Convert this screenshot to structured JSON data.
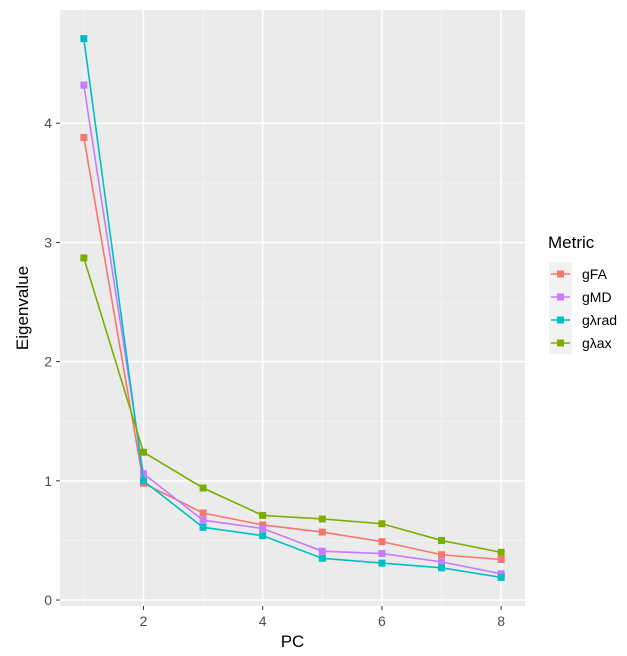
{
  "chart_data": {
    "type": "line",
    "xlabel": "PC",
    "ylabel": "Eigenvalue",
    "xlim": [
      0.6,
      8.4
    ],
    "ylim": [
      -0.05,
      4.95
    ],
    "x_ticks": [
      2,
      4,
      6,
      8
    ],
    "y_ticks": [
      0,
      1,
      2,
      3,
      4
    ],
    "x_tick_labels": [
      "2",
      "4",
      "6",
      "8"
    ],
    "y_tick_labels": [
      "0",
      "1",
      "2",
      "3",
      "4"
    ],
    "grid": true,
    "legend": {
      "title": "Metric",
      "placement": "right"
    },
    "x": [
      1,
      2,
      3,
      4,
      5,
      6,
      7,
      8
    ],
    "series": [
      {
        "name": "gFA",
        "color": "#F8766D",
        "values": [
          3.88,
          0.98,
          0.73,
          0.63,
          0.57,
          0.49,
          0.38,
          0.34
        ]
      },
      {
        "name": "gMD",
        "color": "#C77CFF",
        "values": [
          4.32,
          1.06,
          0.67,
          0.6,
          0.41,
          0.39,
          0.32,
          0.22
        ]
      },
      {
        "name": "gλrad",
        "color": "#00BFC4",
        "values": [
          4.71,
          1.0,
          0.61,
          0.54,
          0.35,
          0.31,
          0.27,
          0.19
        ]
      },
      {
        "name": "gλax",
        "color": "#7CAE00",
        "values": [
          2.87,
          1.24,
          0.94,
          0.71,
          0.68,
          0.64,
          0.5,
          0.4
        ]
      }
    ]
  }
}
